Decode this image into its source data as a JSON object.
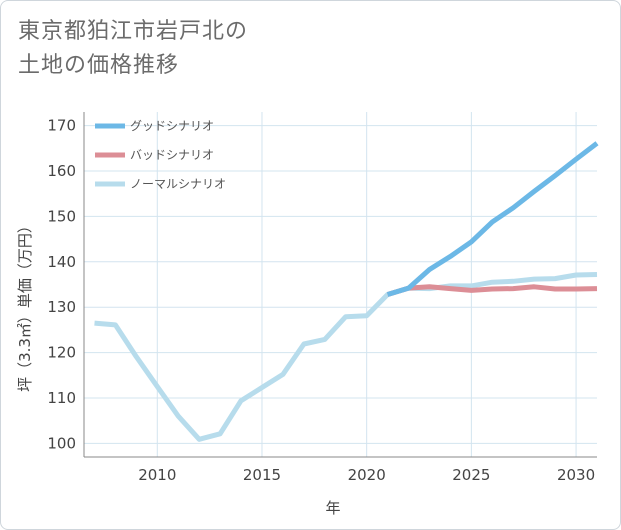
{
  "title_lines": [
    "東京都狛江市岩戸北の",
    "土地の価格推移"
  ],
  "chart_data": {
    "type": "line",
    "xlabel": "年",
    "ylabel": "坪（3.3㎡）単価（万円）",
    "xlim": [
      2006.5,
      2031
    ],
    "ylim": [
      97,
      173
    ],
    "x_ticks": [
      2010,
      2015,
      2020,
      2025,
      2030
    ],
    "y_ticks": [
      100,
      110,
      120,
      130,
      140,
      150,
      160,
      170
    ],
    "legend_position": "top-left",
    "grid": true,
    "series": [
      {
        "name": "グッドシナリオ",
        "color": "#6cb8e6",
        "x": [
          2021,
          2022,
          2023,
          2024,
          2025,
          2026,
          2027,
          2028,
          2029,
          2030,
          2031
        ],
        "values": [
          132.8,
          134.2,
          138.3,
          141.2,
          144.4,
          148.8,
          151.9,
          155.5,
          159.0,
          162.6,
          166.1
        ]
      },
      {
        "name": "バッドシナリオ",
        "color": "#dc8e96",
        "x": [
          2021,
          2022,
          2023,
          2024,
          2025,
          2026,
          2027,
          2028,
          2029,
          2030,
          2031
        ],
        "values": [
          132.8,
          134.2,
          134.5,
          134.1,
          133.7,
          134.0,
          134.1,
          134.5,
          134.0,
          134.0,
          134.1
        ]
      },
      {
        "name": "ノーマルシナリオ",
        "color": "#b7dcec",
        "x": [
          2007,
          2008,
          2009,
          2010,
          2011,
          2012,
          2013,
          2014,
          2015,
          2016,
          2017,
          2018,
          2019,
          2020,
          2021,
          2022,
          2023,
          2024,
          2025,
          2026,
          2027,
          2028,
          2029,
          2030,
          2031
        ],
        "values": [
          126.5,
          126.1,
          119.1,
          112.5,
          106.0,
          100.9,
          102.1,
          109.4,
          112.3,
          115.2,
          121.9,
          122.9,
          127.9,
          128.1,
          132.8,
          134.2,
          134.1,
          134.7,
          134.7,
          135.5,
          135.7,
          136.2,
          136.3,
          137.1,
          137.2
        ]
      }
    ]
  }
}
